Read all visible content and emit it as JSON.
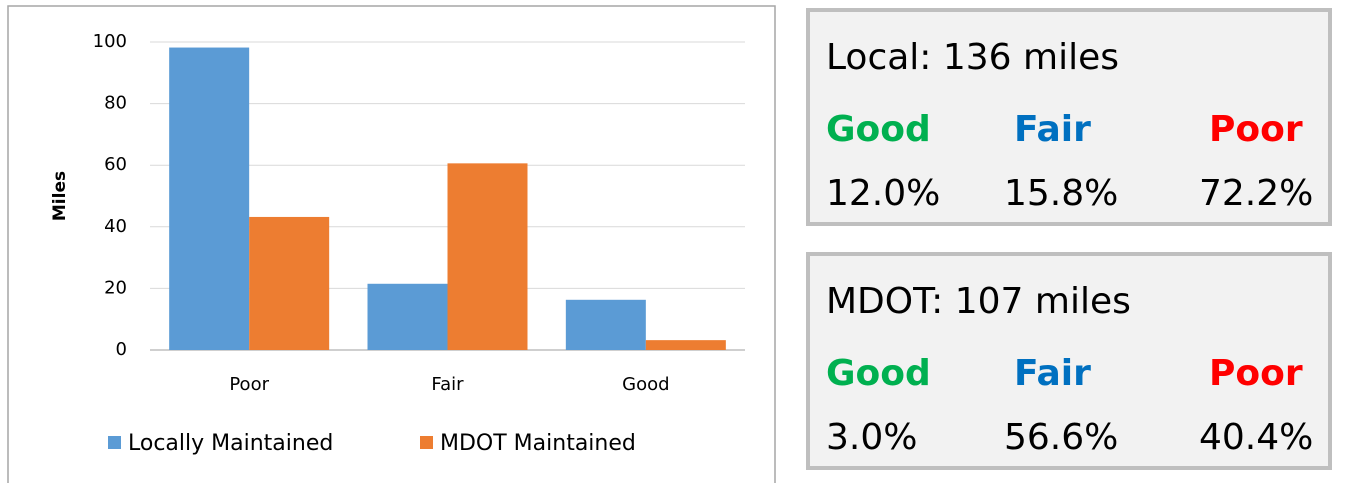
{
  "chart_data": {
    "type": "bar",
    "categories": [
      "Poor",
      "Fair",
      "Good"
    ],
    "series": [
      {
        "name": "Locally Maintained",
        "color": "#5b9bd5",
        "values": [
          98.2,
          21.5,
          16.3
        ]
      },
      {
        "name": "MDOT Maintained",
        "color": "#ed7d31",
        "values": [
          43.2,
          60.6,
          3.2
        ]
      }
    ],
    "ylabel": "Miles",
    "ylim": [
      0,
      100
    ],
    "yticks": [
      0,
      20,
      40,
      60,
      80,
      100
    ],
    "grid": true,
    "legend": "bottom"
  },
  "panels": [
    {
      "title": "Local: 136 miles",
      "headers": [
        "Good",
        "Fair",
        "Poor"
      ],
      "values": [
        "12.0%",
        "15.8%",
        "72.2%"
      ]
    },
    {
      "title": "MDOT: 107 miles",
      "headers": [
        "Good",
        "Fair",
        "Poor"
      ],
      "values": [
        "3.0%",
        "56.6%",
        "40.4%"
      ]
    }
  ]
}
